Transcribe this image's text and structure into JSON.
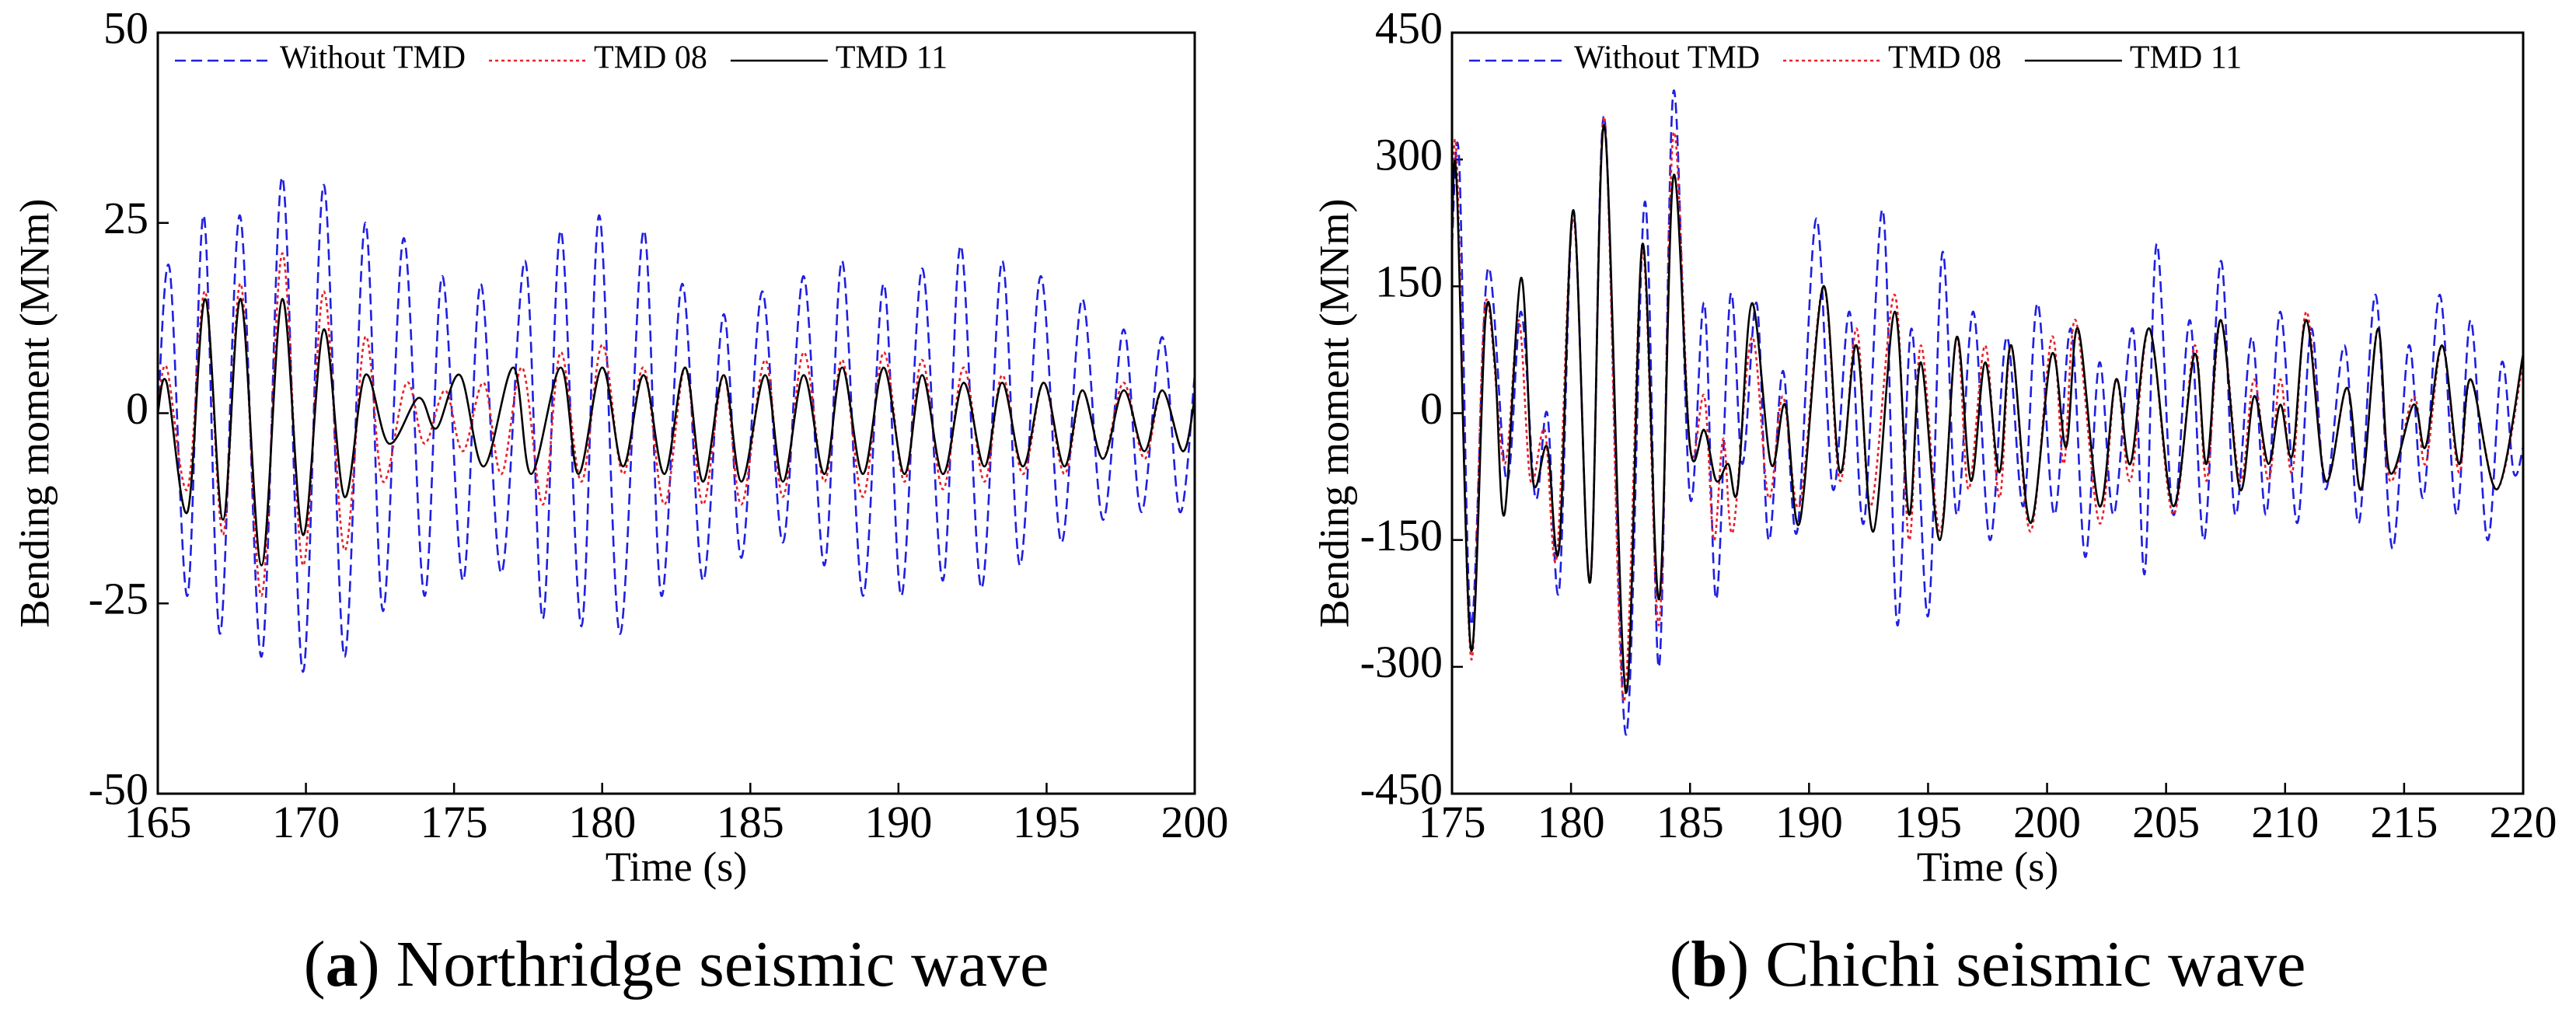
{
  "chart_data": [
    {
      "type": "line",
      "xlabel": "Time (s)",
      "ylabel": "Bending moment (MNm)",
      "caption": [
        "(",
        "a",
        ") Northridge seismic wave"
      ],
      "xlim": [
        165,
        200
      ],
      "xticks": [
        165,
        170,
        175,
        180,
        185,
        190,
        195,
        200
      ],
      "ylim": [
        -50,
        50
      ],
      "yticks": [
        -50,
        -25,
        0,
        25,
        50
      ],
      "legend": "top",
      "series": [
        {
          "name": "Without TMD",
          "color": "#1f1fe0",
          "style": "dashed",
          "x": [
            165,
            165.4,
            166.0,
            166.55,
            167.1,
            167.77,
            168.5,
            169.2,
            169.9,
            170.6,
            171.3,
            172.0,
            172.6,
            173.3,
            174.0,
            174.6,
            175.3,
            175.9,
            176.6,
            177.4,
            178.0,
            178.6,
            179.3,
            179.9,
            180.6,
            181.4,
            182.0,
            182.7,
            183.4,
            184.1,
            184.7,
            185.4,
            186.1,
            186.8,
            187.5,
            188.1,
            188.8,
            189.5,
            190.1,
            190.8,
            191.5,
            192.1,
            192.8,
            193.5,
            194.1,
            194.8,
            195.5,
            196.2,
            196.9,
            197.6,
            198.2,
            198.9,
            199.5,
            200
          ],
          "values": [
            0,
            19,
            -24,
            26,
            -29,
            26,
            -32,
            31,
            -34,
            30,
            -32,
            25,
            -26,
            23,
            -24,
            18,
            -22,
            17,
            -21,
            20,
            -27,
            24,
            -28,
            26,
            -29,
            24,
            -24,
            17,
            -22,
            13,
            -19,
            16,
            -17,
            18,
            -20,
            20,
            -24,
            17,
            -24,
            19,
            -22,
            22,
            -23,
            20,
            -20,
            18,
            -17,
            15,
            -14,
            11,
            -13,
            10,
            -13,
            5
          ]
        },
        {
          "name": "TMD 08",
          "color": "#e8202a",
          "style": "dotted",
          "x": [
            165,
            165.3,
            166.0,
            166.6,
            167.2,
            167.8,
            168.5,
            169.2,
            169.9,
            170.6,
            171.3,
            172.0,
            172.6,
            173.4,
            174.0,
            174.7,
            175.3,
            176.0,
            176.6,
            177.3,
            178.0,
            178.6,
            179.3,
            180.0,
            180.7,
            181.4,
            182.1,
            182.8,
            183.4,
            184.1,
            184.7,
            185.5,
            186.1,
            186.8,
            187.5,
            188.1,
            188.8,
            189.5,
            190.2,
            190.8,
            191.5,
            192.2,
            192.9,
            193.5,
            194.2,
            194.9,
            195.6,
            196.2,
            196.9,
            197.6,
            198.3,
            198.9,
            199.6,
            200
          ],
          "values": [
            0,
            6,
            -10,
            16,
            -16,
            17,
            -24,
            21,
            -20,
            16,
            -18,
            10,
            -9,
            4,
            -4,
            3,
            -5,
            4,
            -8,
            6,
            -12,
            8,
            -9,
            9,
            -8,
            6,
            -12,
            6,
            -12,
            5,
            -12,
            7,
            -11,
            8,
            -9,
            7,
            -11,
            8,
            -9,
            7,
            -10,
            6,
            -9,
            5,
            -8,
            4,
            -8,
            3,
            -6,
            4,
            -6,
            3,
            -5,
            2
          ]
        },
        {
          "name": "TMD 11",
          "color": "#000000",
          "style": "solid",
          "x": [
            165,
            165.3,
            166.0,
            166.6,
            167.2,
            167.8,
            168.5,
            169.2,
            169.9,
            170.6,
            171.3,
            172.0,
            172.8,
            173.8,
            174.4,
            175.2,
            176.0,
            177.0,
            177.6,
            178.6,
            179.2,
            180.0,
            180.7,
            181.4,
            182.1,
            182.8,
            183.4,
            184.1,
            184.7,
            185.5,
            186.1,
            186.8,
            187.5,
            188.1,
            188.8,
            189.5,
            190.2,
            190.8,
            191.5,
            192.2,
            192.9,
            193.5,
            194.2,
            194.9,
            195.6,
            196.2,
            196.9,
            197.6,
            198.3,
            198.9,
            199.6,
            200
          ],
          "values": [
            0,
            4,
            -13,
            15,
            -14,
            15,
            -20,
            15,
            -16,
            11,
            -11,
            5,
            -4,
            2,
            -2,
            5,
            -7,
            6,
            -8,
            6,
            -8,
            6,
            -7,
            5,
            -8,
            6,
            -9,
            5,
            -9,
            5,
            -9,
            5,
            -8,
            6,
            -8,
            6,
            -8,
            5,
            -8,
            4,
            -7,
            4,
            -7,
            4,
            -7,
            3,
            -6,
            3,
            -5,
            3,
            -5,
            2
          ]
        }
      ]
    },
    {
      "type": "line",
      "xlabel": "Time (s)",
      "ylabel": "Bending moment (MNm)",
      "caption": [
        "(",
        "b",
        ") Chichi seismic wave"
      ],
      "xlim": [
        175,
        220
      ],
      "xticks": [
        175,
        180,
        185,
        190,
        195,
        200,
        205,
        210,
        215,
        220
      ],
      "ylim": [
        -450,
        450
      ],
      "yticks": [
        -450,
        -300,
        -150,
        0,
        150,
        300,
        450
      ],
      "legend": "top",
      "series": [
        {
          "name": "Without TMD",
          "color": "#1f1fe0",
          "style": "dashed",
          "x": [
            175,
            175.3,
            175.8,
            176.5,
            177.3,
            177.9,
            178.5,
            179,
            179.5,
            180.1,
            180.8,
            181.4,
            182.3,
            183.1,
            183.7,
            184.3,
            185,
            185.6,
            186.1,
            186.7,
            187.2,
            187.8,
            188.3,
            188.9,
            189.5,
            190.3,
            191,
            191.7,
            192.3,
            193.1,
            193.7,
            194.3,
            195,
            195.6,
            196.2,
            196.9,
            197.6,
            198.3,
            199,
            199.6,
            200.3,
            201,
            201.6,
            202.2,
            202.8,
            203.6,
            204.1,
            204.6,
            205.3,
            206,
            206.6,
            207.3,
            207.9,
            208.6,
            209.2,
            209.8,
            210.5,
            211.1,
            211.7,
            212.5,
            213.1,
            213.8,
            214.5,
            215.2,
            215.8,
            216.5,
            217.2,
            217.8,
            218.5,
            219.1,
            219.6,
            220
          ],
          "values": [
            200,
            300,
            -250,
            170,
            -80,
            120,
            -100,
            0,
            -210,
            240,
            -200,
            350,
            -380,
            250,
            -300,
            380,
            -100,
            130,
            -220,
            140,
            -60,
            130,
            -150,
            50,
            -140,
            230,
            -90,
            120,
            -130,
            240,
            -250,
            100,
            -240,
            190,
            -120,
            120,
            -150,
            90,
            -110,
            130,
            -120,
            100,
            -170,
            60,
            -120,
            100,
            -190,
            200,
            -120,
            110,
            -150,
            180,
            -120,
            90,
            -120,
            120,
            -130,
            100,
            -90,
            80,
            -130,
            140,
            -160,
            80,
            -100,
            140,
            -120,
            110,
            -150,
            60,
            -70,
            -40
          ]
        },
        {
          "name": "TMD 08",
          "color": "#e8202a",
          "style": "dotted",
          "x": [
            175,
            175.2,
            175.8,
            176.4,
            177.2,
            177.8,
            178.3,
            178.9,
            179.4,
            180.1,
            180.8,
            181.4,
            182.2,
            183,
            183.7,
            184.3,
            185,
            185.6,
            186,
            186.4,
            186.8,
            187.6,
            188.3,
            188.9,
            189.6,
            190.6,
            191.3,
            192,
            192.6,
            193.6,
            194.2,
            194.7,
            195.5,
            196.2,
            196.7,
            197.4,
            198,
            198.5,
            199.3,
            200.2,
            200.7,
            201.2,
            202.2,
            202.9,
            203.5,
            204.3,
            205.3,
            206.2,
            206.7,
            207.3,
            208.1,
            208.7,
            209.3,
            209.8,
            210.3,
            210.9,
            211.7,
            212.6,
            213.2,
            213.9,
            214.4,
            215.4,
            215.9,
            216.6,
            217.3,
            217.8,
            218.9,
            220
          ],
          "values": [
            210,
            300,
            -290,
            130,
            -60,
            110,
            -80,
            -20,
            -170,
            230,
            -200,
            350,
            -340,
            190,
            -250,
            330,
            -40,
            20,
            -150,
            -30,
            -140,
            90,
            -100,
            20,
            -110,
            150,
            -80,
            100,
            -110,
            140,
            -150,
            80,
            -140,
            90,
            -90,
            80,
            -100,
            80,
            -140,
            90,
            -60,
            110,
            -130,
            40,
            -80,
            100,
            -120,
            80,
            -80,
            110,
            -80,
            40,
            -80,
            40,
            -70,
            120,
            -80,
            30,
            -90,
            100,
            -80,
            20,
            -60,
            80,
            -70,
            40,
            -90,
            60
          ]
        },
        {
          "name": "TMD 11",
          "color": "#000000",
          "style": "solid",
          "x": [
            175,
            175.2,
            175.8,
            176.4,
            176.8,
            177.2,
            177.9,
            178.4,
            179,
            179.5,
            180.1,
            180.8,
            181.4,
            182.3,
            183,
            183.7,
            184.3,
            185,
            185.6,
            186.1,
            186.6,
            187,
            187.6,
            188.4,
            189,
            189.6,
            190.6,
            191.3,
            192,
            192.7,
            193.6,
            194.2,
            194.7,
            195.5,
            196.2,
            196.8,
            197.4,
            198,
            198.5,
            199.3,
            200.2,
            200.8,
            201.3,
            202.2,
            202.9,
            203.5,
            204.3,
            205.3,
            206.2,
            206.7,
            207.3,
            208.1,
            208.7,
            209.3,
            209.8,
            210.3,
            210.9,
            211.7,
            212.6,
            213.2,
            213.9,
            214.4,
            215.4,
            215.9,
            216.6,
            217.3,
            217.8,
            218.9,
            220
          ],
          "values": [
            220,
            270,
            -280,
            110,
            60,
            -120,
            160,
            -80,
            -40,
            -160,
            240,
            -200,
            340,
            -330,
            200,
            -220,
            280,
            -40,
            -20,
            -80,
            -60,
            -90,
            130,
            -60,
            10,
            -130,
            150,
            -70,
            80,
            -140,
            120,
            -120,
            60,
            -150,
            90,
            -80,
            60,
            -70,
            80,
            -130,
            70,
            -40,
            100,
            -110,
            40,
            -60,
            100,
            -110,
            70,
            -60,
            110,
            -90,
            20,
            -60,
            10,
            -50,
            110,
            -80,
            30,
            -90,
            100,
            -70,
            10,
            -40,
            80,
            -60,
            40,
            -90,
            70
          ]
        }
      ]
    }
  ]
}
